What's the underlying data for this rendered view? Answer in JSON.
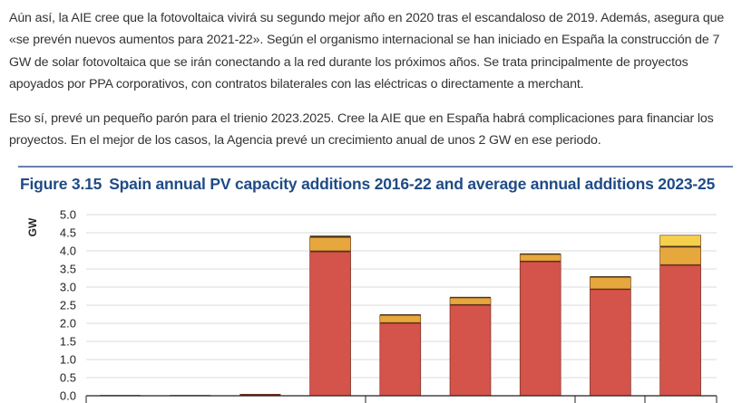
{
  "article": {
    "paragraphs": [
      "Aún así, la AIE cree que la fotovoltaica vivirá su segundo mejor año en 2020 tras el escandaloso de 2019. Además, asegura que «se prevén nuevos aumentos para 2021-22». Según el organismo internacional se han iniciado en España la construcción de 7 GW de solar fotovoltaica que se irán conectando a la red durante los próximos años. Se trata principalmente de proyectos apoyados por PPA corporativos, con contratos bilaterales con las eléctricas o directamente a merchant.",
      "Eso sí, prevé un pequeño parón para el trienio 2023.2025. Cree la AIE que en España habrá complicaciones para financiar los proyectos. En el mejor de los casos, la Agencia prevé un crecimiento anual de unos 2 GW en ese periodo."
    ]
  },
  "chart_data": {
    "type": "bar",
    "stacked": true,
    "figure_label": "Figure 3.15",
    "title": "Spain annual PV capacity additions 2016-22 and average annual additions 2023-25",
    "ylabel": "GW",
    "ylim": [
      0,
      5
    ],
    "yticks": [
      "0.0",
      "0.5",
      "1.0",
      "1.5",
      "2.0",
      "2.5",
      "3.0",
      "3.5",
      "4.0",
      "4.5",
      "5.0"
    ],
    "grid": true,
    "bar_count": 9,
    "series": [
      {
        "color": "#d4534b",
        "values": [
          0,
          0,
          0,
          3.97,
          2.0,
          2.5,
          3.7,
          2.93,
          3.6
        ]
      },
      {
        "color": "#6b2a1c",
        "values": [
          0.02,
          0.02,
          0.05,
          0.03,
          0.02,
          0.02,
          0.02,
          0.02,
          0.02
        ]
      },
      {
        "color": "#e6a83c",
        "values": [
          0,
          0,
          0,
          0.37,
          0.2,
          0.18,
          0.18,
          0.32,
          0.48
        ]
      },
      {
        "color": "#4a3418",
        "values": [
          0,
          0,
          0,
          0.05,
          0.03,
          0.03,
          0.03,
          0.03,
          0.03
        ]
      },
      {
        "color": "#f5d04c",
        "values": [
          0,
          0,
          0,
          0,
          0,
          0,
          0,
          0,
          0.3
        ]
      }
    ]
  }
}
